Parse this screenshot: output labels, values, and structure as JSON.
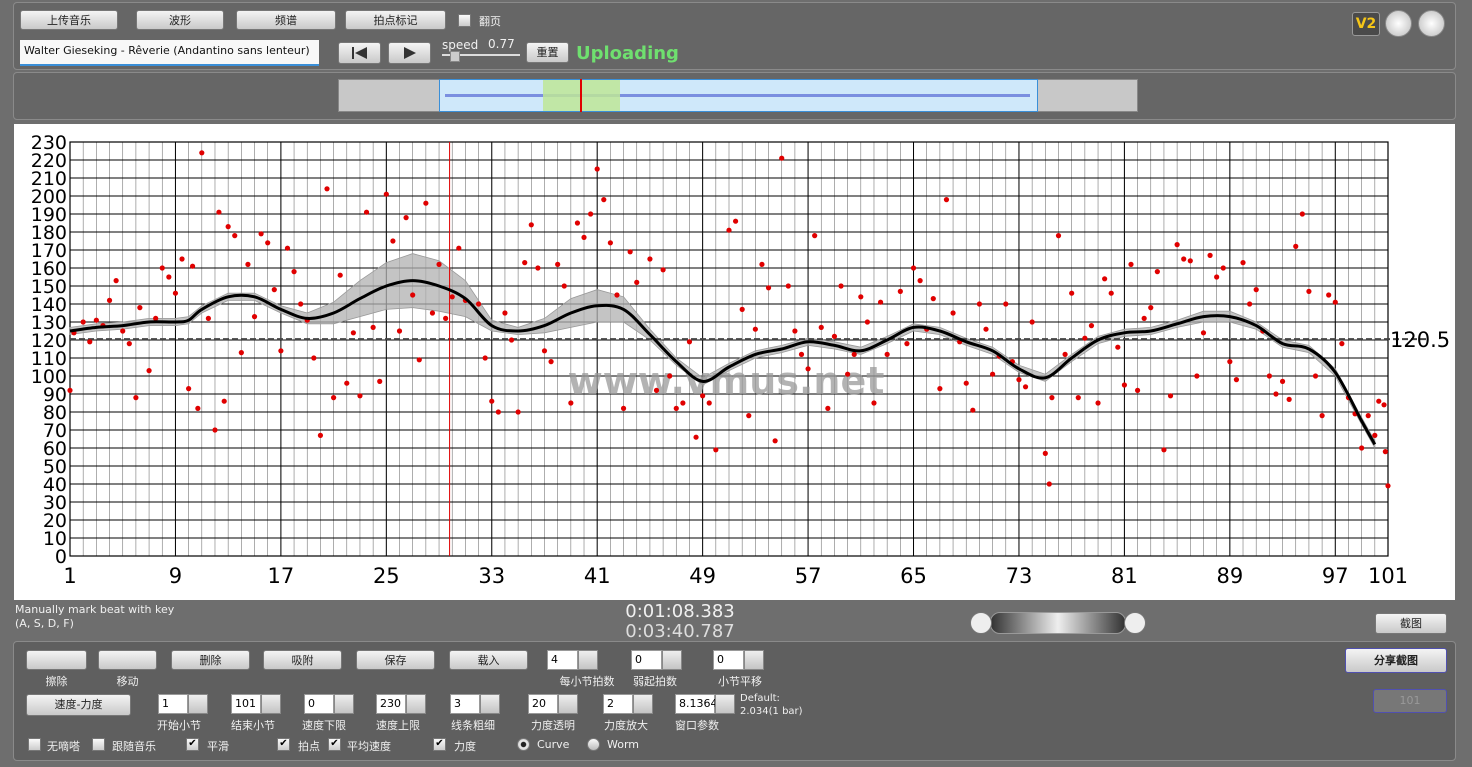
{
  "toolbar": {
    "buttons": [
      "上传音乐",
      "波形",
      "频谱",
      "拍点标记"
    ],
    "page_turn": {
      "label": "翻页",
      "checked": false
    },
    "logo": "V2"
  },
  "player": {
    "track": "Walter Gieseking - Rêverie (Andantino sans lenteur)",
    "speed_label": "speed",
    "speed": "0.77",
    "reset": "重置",
    "status": "Uploading"
  },
  "hint": {
    "line1": "Manually mark beat with key",
    "line2": "(A, S, D, F)"
  },
  "time": {
    "current": "0:01:08.383",
    "total": "0:03:40.787"
  },
  "screenshot": "截图",
  "share": "分享截图",
  "disabled_button": "101",
  "tools": [
    {
      "label": "擦除"
    },
    {
      "label": "移动"
    },
    {
      "button": "删除"
    },
    {
      "button": "吸附"
    },
    {
      "button": "保存"
    },
    {
      "button": "载入"
    }
  ],
  "spinners_row1": [
    {
      "value": "4",
      "label": "每小节拍数"
    },
    {
      "value": "0",
      "label": "弱起拍数"
    },
    {
      "value": "0",
      "label": "小节平移"
    }
  ],
  "mode_button": "速度-力度",
  "spinners_row2": [
    {
      "value": "1",
      "label": "开始小节"
    },
    {
      "value": "101",
      "label": "结束小节"
    },
    {
      "value": "0",
      "label": "速度下限"
    },
    {
      "value": "230",
      "label": "速度上限"
    },
    {
      "value": "3",
      "label": "线条粗细"
    },
    {
      "value": "20",
      "label": "力度透明"
    },
    {
      "value": "2",
      "label": "力度放大"
    },
    {
      "value": "8.1364",
      "label": "窗口参数"
    }
  ],
  "default_note": {
    "line1": "Default:",
    "line2": "2.034(1 bar)"
  },
  "options": [
    {
      "label": "无嘀嗒",
      "checked": false
    },
    {
      "label": "跟随音乐",
      "checked": false
    },
    {
      "label": "平滑",
      "checked": true
    },
    {
      "label": "拍点",
      "checked": true
    },
    {
      "label": "平均速度",
      "checked": true
    },
    {
      "label": "力度",
      "checked": true
    }
  ],
  "view": [
    {
      "label": "Curve",
      "selected": true
    },
    {
      "label": "Worm",
      "selected": false
    }
  ],
  "chart_data": {
    "type": "scatter",
    "watermark": "www.vmus.net",
    "xlim": [
      1,
      101
    ],
    "xticks": [
      1,
      9,
      17,
      25,
      33,
      41,
      49,
      57,
      65,
      73,
      81,
      89,
      97,
      101
    ],
    "ylim": [
      0,
      230
    ],
    "yticks": [
      0,
      10,
      20,
      30,
      40,
      50,
      60,
      70,
      80,
      90,
      100,
      110,
      120,
      130,
      140,
      150,
      160,
      170,
      180,
      190,
      200,
      210,
      220,
      230
    ],
    "grid": true,
    "average": {
      "value": 120.5,
      "color": "#444444"
    },
    "cursor_x": 29.8,
    "points": {
      "color": "#e00000",
      "x": [
        1,
        1.3,
        2,
        2.5,
        3,
        3.5,
        4,
        4.5,
        5,
        5.5,
        6,
        6.3,
        7,
        7.5,
        8,
        8.5,
        9,
        9.5,
        10,
        10.3,
        10.7,
        11,
        11.5,
        12,
        12.3,
        12.7,
        13,
        13.5,
        14,
        14.5,
        15,
        15.5,
        16,
        16.5,
        17,
        17.5,
        18,
        18.5,
        19,
        19.5,
        20,
        20.5,
        21,
        21.5,
        22,
        22.5,
        23,
        23.5,
        24,
        24.5,
        25,
        25.5,
        26,
        26.5,
        27,
        27.5,
        28,
        28.5,
        29,
        29.5,
        30,
        30.5,
        31,
        32,
        32.5,
        33,
        33.5,
        34,
        34.5,
        35,
        35.5,
        36,
        36.5,
        37,
        37.5,
        38,
        38.5,
        39,
        39.5,
        40,
        40.5,
        41,
        41.5,
        42,
        42.5,
        43,
        43.5,
        44,
        45,
        45.5,
        46,
        46.5,
        47,
        47.5,
        48,
        48.5,
        49,
        49.5,
        50,
        51,
        51.5,
        52,
        52.5,
        53,
        53.5,
        54,
        54.5,
        55,
        55.5,
        56,
        56.5,
        57,
        57.5,
        58,
        58.5,
        59,
        59.5,
        60,
        60.5,
        61,
        61.5,
        62,
        62.5,
        63,
        64,
        64.5,
        65,
        65.5,
        66,
        66.5,
        67,
        67.5,
        68,
        68.5,
        69,
        69.5,
        70,
        70.5,
        71,
        71.5,
        72,
        72.5,
        73,
        73.5,
        74,
        75,
        75.3,
        75.5,
        76,
        76.5,
        77,
        77.5,
        78,
        78.5,
        79,
        79.5,
        80,
        80.5,
        81,
        81.5,
        82,
        82.5,
        83,
        83.5,
        84,
        84.5,
        85,
        85.5,
        86,
        86.5,
        87,
        87.5,
        88,
        88.5,
        89,
        89.5,
        90,
        90.5,
        91,
        91.5,
        92,
        92.5,
        93,
        93.5,
        94,
        94.5,
        95,
        95.5,
        96,
        96.5,
        97,
        97.5,
        98,
        98.5,
        99,
        99.5,
        100,
        100.3,
        100.7,
        100.8,
        101
      ],
      "values": [
        92,
        124,
        130,
        119,
        131,
        128,
        142,
        153,
        125,
        118,
        88,
        138,
        103,
        132,
        160,
        155,
        146,
        165,
        93,
        161,
        82,
        224,
        132,
        70,
        191,
        86,
        183,
        178,
        113,
        162,
        133,
        179,
        174,
        148,
        114,
        171,
        158,
        140,
        131,
        110,
        67,
        204,
        88,
        156,
        96,
        124,
        89,
        191,
        127,
        97,
        201,
        175,
        125,
        188,
        145,
        109,
        196,
        135,
        162,
        132,
        144,
        171,
        142,
        140,
        110,
        86,
        80,
        135,
        120,
        80,
        163,
        184,
        160,
        114,
        108,
        162,
        150,
        85,
        185,
        177,
        190,
        215,
        198,
        174,
        145,
        82,
        169,
        152,
        165,
        92,
        159,
        100,
        82,
        85,
        119,
        66,
        89,
        85,
        59,
        181,
        186,
        137,
        78,
        126,
        162,
        149,
        64,
        221,
        150,
        125,
        112,
        104,
        178,
        127,
        82,
        122,
        150,
        101,
        112,
        144,
        130,
        85,
        141,
        112,
        147,
        118,
        160,
        153,
        126,
        143,
        93,
        198,
        135,
        119,
        96,
        81,
        140,
        126,
        101,
        111,
        140,
        108,
        98,
        94,
        130,
        57,
        40,
        88,
        178,
        112,
        146,
        88,
        121,
        128,
        85,
        154,
        146,
        116,
        95,
        162,
        92,
        132,
        138,
        158,
        59,
        89,
        173,
        165,
        164,
        100,
        124,
        167,
        155,
        160,
        108,
        98,
        163,
        140,
        148,
        125,
        100,
        90,
        97,
        87,
        172,
        190,
        147,
        100,
        78,
        145,
        141,
        118,
        88,
        79,
        60,
        78,
        67,
        86,
        84,
        58,
        39
      ]
    },
    "curve": {
      "color": "#000000",
      "x": [
        1,
        3,
        5,
        7,
        9,
        10,
        11,
        13,
        15,
        17,
        19,
        21,
        23,
        25,
        27,
        29,
        31,
        33,
        35,
        37,
        39,
        41,
        43,
        45,
        47,
        49,
        51,
        53,
        55,
        57,
        59,
        61,
        63,
        65,
        67,
        69,
        71,
        73,
        75,
        77,
        79,
        81,
        83,
        85,
        87,
        89,
        91,
        93,
        95,
        97,
        99,
        100
      ],
      "values": [
        125,
        127,
        128,
        130,
        130,
        131,
        137,
        144,
        144,
        137,
        132,
        135,
        143,
        150,
        153,
        150,
        143,
        128,
        125,
        128,
        135,
        139,
        137,
        123,
        108,
        97,
        105,
        112,
        115,
        119,
        117,
        114,
        120,
        127,
        125,
        119,
        114,
        104,
        99,
        110,
        120,
        124,
        125,
        129,
        133,
        133,
        128,
        118,
        115,
        102,
        75,
        62
      ]
    },
    "band": {
      "color": "#b0b0b0",
      "x": [
        1,
        3,
        5,
        7,
        9,
        10,
        11,
        13,
        15,
        17,
        19,
        21,
        23,
        25,
        27,
        29,
        31,
        33,
        35,
        37,
        39,
        41,
        43,
        45,
        47,
        49,
        51,
        53,
        55,
        57,
        59,
        61,
        63,
        65,
        67,
        69,
        71,
        73,
        75,
        77,
        79,
        81,
        83,
        85,
        87,
        89,
        91,
        93,
        95,
        97,
        99,
        100
      ],
      "upper": [
        127,
        129,
        130,
        132,
        132,
        133,
        139,
        146,
        146,
        139,
        135,
        141,
        153,
        163,
        168,
        164,
        153,
        131,
        127,
        132,
        143,
        148,
        144,
        126,
        110,
        99,
        107,
        114,
        117,
        121,
        119,
        116,
        122,
        129,
        127,
        121,
        116,
        106,
        101,
        112,
        122,
        126,
        127,
        131,
        136,
        136,
        130,
        120,
        117,
        104,
        77,
        64
      ],
      "lower": [
        123,
        125,
        126,
        128,
        128,
        129,
        135,
        142,
        142,
        135,
        129,
        129,
        133,
        137,
        138,
        136,
        133,
        125,
        123,
        124,
        127,
        130,
        130,
        120,
        106,
        95,
        103,
        110,
        113,
        117,
        115,
        112,
        118,
        125,
        123,
        117,
        112,
        102,
        97,
        108,
        118,
        122,
        123,
        127,
        130,
        130,
        126,
        116,
        113,
        100,
        73,
        60
      ]
    }
  }
}
